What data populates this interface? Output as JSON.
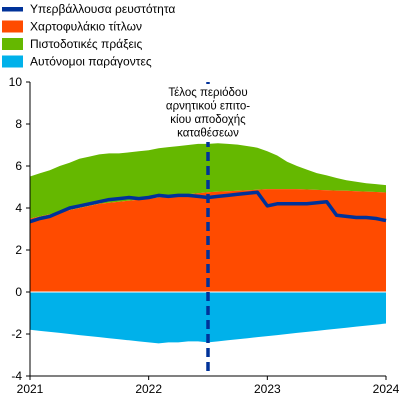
{
  "chart_data": {
    "type": "area",
    "x_ticks": [
      "2021",
      "2022",
      "2023",
      "2024"
    ],
    "x_range": [
      "2021-01",
      "2024-01"
    ],
    "ylim": [
      -4,
      10
    ],
    "y_ticks": [
      -4,
      -2,
      0,
      2,
      4,
      6,
      8,
      10
    ],
    "grid": false,
    "legend_position": "top-left",
    "legend": [
      {
        "key": "excess_liquidity",
        "label": "Υπερβάλλουσα ρευστότητα",
        "color": "#003299",
        "style": "line"
      },
      {
        "key": "securities",
        "label": "Χαρτοφυλάκιο τίτλων",
        "color": "#FF4B00",
        "style": "box"
      },
      {
        "key": "credit",
        "label": "Πιστοδοτικές πράξεις",
        "color": "#65B800",
        "style": "box"
      },
      {
        "key": "autonomous",
        "label": "Αυτόνομοι παράγοντες",
        "color": "#00B1EA",
        "style": "box"
      }
    ],
    "annotation": {
      "date": "2022-07",
      "lines": [
        "Τέλος περιόδου",
        "αρνητικού επιτο-",
        "κίου αποδοχής",
        "καταθέσεων"
      ],
      "line_color": "#003299"
    },
    "x": [
      "2021-01",
      "2021-02",
      "2021-03",
      "2021-04",
      "2021-05",
      "2021-06",
      "2021-07",
      "2021-08",
      "2021-09",
      "2021-10",
      "2021-11",
      "2021-12",
      "2022-01",
      "2022-02",
      "2022-03",
      "2022-04",
      "2022-05",
      "2022-06",
      "2022-07",
      "2022-08",
      "2022-09",
      "2022-10",
      "2022-11",
      "2022-12",
      "2023-01",
      "2023-02",
      "2023-03",
      "2023-04",
      "2023-05",
      "2023-06",
      "2023-07",
      "2023-08",
      "2023-09",
      "2023-10",
      "2023-11",
      "2023-12",
      "2024-01"
    ],
    "series": [
      {
        "key": "securities",
        "name": "Χαρτοφυλάκιο τίτλων",
        "type": "area",
        "color": "#FF4B00",
        "values": [
          3.5,
          3.6,
          3.7,
          3.8,
          3.9,
          4.0,
          4.1,
          4.2,
          4.25,
          4.3,
          4.35,
          4.4,
          4.45,
          4.5,
          4.55,
          4.6,
          4.65,
          4.7,
          4.75,
          4.78,
          4.8,
          4.82,
          4.85,
          4.87,
          4.9,
          4.9,
          4.9,
          4.9,
          4.88,
          4.86,
          4.85,
          4.83,
          4.82,
          4.8,
          4.78,
          4.76,
          4.74
        ]
      },
      {
        "key": "credit",
        "name": "Πιστοδοτικές πράξεις",
        "type": "area",
        "color": "#65B800",
        "values": [
          2.0,
          2.05,
          2.1,
          2.2,
          2.25,
          2.35,
          2.35,
          2.35,
          2.35,
          2.3,
          2.3,
          2.3,
          2.3,
          2.35,
          2.35,
          2.35,
          2.35,
          2.35,
          2.3,
          2.3,
          2.25,
          2.2,
          2.1,
          2.0,
          1.8,
          1.6,
          1.3,
          1.1,
          0.95,
          0.8,
          0.7,
          0.6,
          0.5,
          0.45,
          0.4,
          0.38,
          0.35
        ]
      },
      {
        "key": "autonomous",
        "name": "Αυτόνομοι παράγοντες",
        "type": "area",
        "color": "#00B1EA",
        "values": [
          -1.8,
          -1.85,
          -1.9,
          -1.95,
          -2.0,
          -2.05,
          -2.1,
          -2.15,
          -2.2,
          -2.25,
          -2.3,
          -2.35,
          -2.4,
          -2.45,
          -2.4,
          -2.4,
          -2.35,
          -2.35,
          -2.4,
          -2.35,
          -2.3,
          -2.25,
          -2.2,
          -2.15,
          -2.1,
          -2.05,
          -2.0,
          -1.95,
          -1.9,
          -1.85,
          -1.8,
          -1.75,
          -1.7,
          -1.65,
          -1.6,
          -1.55,
          -1.5
        ]
      },
      {
        "key": "excess_liquidity",
        "name": "Υπερβάλλουσα ρευστότητα",
        "type": "line",
        "color": "#003299",
        "values": [
          3.35,
          3.5,
          3.6,
          3.8,
          4.0,
          4.1,
          4.2,
          4.3,
          4.4,
          4.45,
          4.5,
          4.45,
          4.5,
          4.6,
          4.55,
          4.6,
          4.6,
          4.55,
          4.5,
          4.55,
          4.6,
          4.65,
          4.7,
          4.75,
          4.1,
          4.2,
          4.2,
          4.2,
          4.2,
          4.25,
          4.3,
          3.65,
          3.6,
          3.55,
          3.55,
          3.5,
          3.4
        ]
      }
    ]
  }
}
